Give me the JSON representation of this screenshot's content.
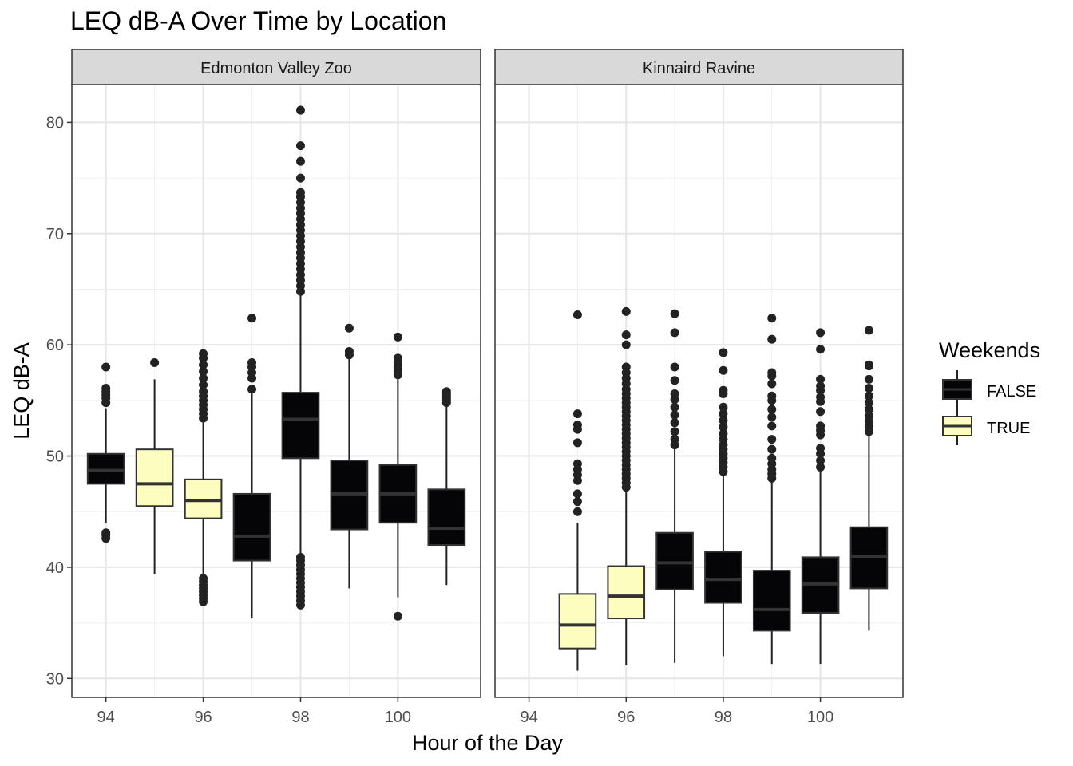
{
  "chart_data": {
    "type": "boxplot",
    "title": "LEQ dB-A Over Time by Location",
    "xlabel": "Hour of the Day",
    "ylabel": "LEQ dB-A",
    "ylim": [
      28.3,
      83.4
    ],
    "xlim": [
      93.3,
      101.7
    ],
    "y_ticks": [
      30,
      40,
      50,
      60,
      70,
      80
    ],
    "x_ticks": [
      94,
      96,
      98,
      100
    ],
    "grid": true,
    "legend": {
      "title": "Weekends",
      "position": "right",
      "entries": [
        {
          "label": "FALSE",
          "color": "#050508"
        },
        {
          "label": "TRUE",
          "color": "#fcfdbf"
        }
      ]
    },
    "panels": [
      {
        "label": "Edmonton Valley Zoo",
        "boxes": [
          {
            "x": 94,
            "weekend": "FALSE",
            "lower_whisker": 44.0,
            "q1": 47.5,
            "median": 48.7,
            "q3": 50.2,
            "upper_whisker": 54.3,
            "outliers": [
              42.6,
              42.9,
              43.1,
              54.8,
              55.2,
              55.5,
              55.8,
              56.1,
              58.0
            ]
          },
          {
            "x": 95,
            "weekend": "TRUE",
            "lower_whisker": 39.4,
            "q1": 45.5,
            "median": 47.5,
            "q3": 50.6,
            "upper_whisker": 56.9,
            "outliers": [
              58.4
            ]
          },
          {
            "x": 96,
            "weekend": "TRUE",
            "lower_whisker": 39.1,
            "q1": 44.4,
            "median": 46.0,
            "q3": 47.9,
            "upper_whisker": 53.0,
            "outliers": [
              36.9,
              37.2,
              37.5,
              37.8,
              38.1,
              38.4,
              38.7,
              39.0,
              53.4,
              53.8,
              54.2,
              54.6,
              55.0,
              55.4,
              55.8,
              56.4,
              57.0,
              57.6,
              58.2,
              58.8,
              59.2
            ]
          },
          {
            "x": 97,
            "weekend": "FALSE",
            "lower_whisker": 35.4,
            "q1": 40.6,
            "median": 42.8,
            "q3": 46.6,
            "upper_whisker": 55.6,
            "outliers": [
              56.0,
              57.0,
              57.5,
              58.0,
              58.4,
              62.4
            ]
          },
          {
            "x": 98,
            "weekend": "FALSE",
            "lower_whisker": 41.0,
            "q1": 49.8,
            "median": 53.3,
            "q3": 55.7,
            "upper_whisker": 64.5,
            "outliers": [
              36.6,
              37.0,
              37.4,
              37.8,
              38.2,
              38.6,
              39.0,
              39.4,
              39.8,
              40.2,
              40.6,
              40.9,
              64.8,
              65.3,
              65.8,
              66.3,
              66.8,
              67.3,
              67.8,
              68.3,
              68.8,
              69.3,
              69.8,
              70.3,
              70.8,
              71.3,
              71.8,
              72.3,
              72.8,
              73.3,
              73.7,
              75.0,
              76.5,
              77.9,
              81.1
            ]
          },
          {
            "x": 99,
            "weekend": "FALSE",
            "lower_whisker": 38.1,
            "q1": 43.4,
            "median": 46.6,
            "q3": 49.6,
            "upper_whisker": 58.8,
            "outliers": [
              59.1,
              59.4,
              61.5
            ]
          },
          {
            "x": 100,
            "weekend": "FALSE",
            "lower_whisker": 37.3,
            "q1": 44.0,
            "median": 46.6,
            "q3": 49.2,
            "upper_whisker": 57.0,
            "outliers": [
              35.6,
              57.3,
              57.6,
              58.0,
              58.4,
              58.8,
              60.7
            ]
          },
          {
            "x": 101,
            "weekend": "FALSE",
            "lower_whisker": 38.4,
            "q1": 42.0,
            "median": 43.5,
            "q3": 47.0,
            "upper_whisker": 54.6,
            "outliers": [
              54.8,
              55.0,
              55.2,
              55.4,
              55.6,
              55.8
            ]
          }
        ]
      },
      {
        "label": "Kinnaird Ravine",
        "boxes": [
          {
            "x": 95,
            "weekend": "TRUE",
            "lower_whisker": 30.7,
            "q1": 32.7,
            "median": 34.8,
            "q3": 37.6,
            "upper_whisker": 44.0,
            "outliers": [
              45.0,
              45.9,
              46.6,
              47.8,
              48.3,
              48.8,
              49.3,
              51.2,
              52.4,
              52.8,
              53.8,
              62.7
            ]
          },
          {
            "x": 96,
            "weekend": "TRUE",
            "lower_whisker": 31.2,
            "q1": 35.4,
            "median": 37.4,
            "q3": 40.1,
            "upper_whisker": 46.8,
            "outliers": [
              47.2,
              47.6,
              48.0,
              48.4,
              48.8,
              49.2,
              49.6,
              50.0,
              50.4,
              50.8,
              51.2,
              51.6,
              52.0,
              52.4,
              52.8,
              53.2,
              53.6,
              54.0,
              54.4,
              54.8,
              55.2,
              55.6,
              56.0,
              56.5,
              57.0,
              57.5,
              58.0,
              60.0,
              60.9,
              63.0
            ]
          },
          {
            "x": 97,
            "weekend": "FALSE",
            "lower_whisker": 31.4,
            "q1": 38.0,
            "median": 40.4,
            "q3": 43.1,
            "upper_whisker": 50.7,
            "outliers": [
              51.0,
              51.5,
              52.2,
              53.0,
              53.7,
              54.4,
              55.1,
              55.6,
              56.8,
              58.0,
              61.1,
              62.8
            ]
          },
          {
            "x": 98,
            "weekend": "FALSE",
            "lower_whisker": 32.0,
            "q1": 36.8,
            "median": 38.9,
            "q3": 41.4,
            "upper_whisker": 48.3,
            "outliers": [
              48.6,
              49.0,
              49.4,
              49.8,
              50.2,
              50.6,
              51.0,
              51.5,
              52.0,
              52.6,
              53.2,
              53.8,
              54.4,
              55.6,
              55.9,
              57.7,
              59.3
            ]
          },
          {
            "x": 99,
            "weekend": "FALSE",
            "lower_whisker": 31.3,
            "q1": 34.3,
            "median": 36.2,
            "q3": 39.7,
            "upper_whisker": 47.7,
            "outliers": [
              48.0,
              48.4,
              48.8,
              49.3,
              49.8,
              50.6,
              51.5,
              52.7,
              53.5,
              54.2,
              55.0,
              55.4,
              56.5,
              57.2,
              57.5,
              60.5,
              62.4
            ]
          },
          {
            "x": 100,
            "weekend": "FALSE",
            "lower_whisker": 31.3,
            "q1": 35.9,
            "median": 38.5,
            "q3": 40.9,
            "upper_whisker": 48.6,
            "outliers": [
              49.0,
              49.6,
              50.2,
              50.7,
              51.9,
              52.3,
              52.7,
              54.0,
              54.9,
              55.3,
              55.9,
              56.3,
              56.9,
              59.6,
              61.1
            ]
          },
          {
            "x": 101,
            "weekend": "FALSE",
            "lower_whisker": 34.3,
            "q1": 38.1,
            "median": 41.0,
            "q3": 43.6,
            "upper_whisker": 51.8,
            "outliers": [
              52.2,
              52.6,
              53.1,
              53.6,
              54.2,
              54.8,
              55.4,
              56.1,
              56.9,
              58.1,
              58.2,
              61.3
            ]
          }
        ]
      }
    ]
  }
}
